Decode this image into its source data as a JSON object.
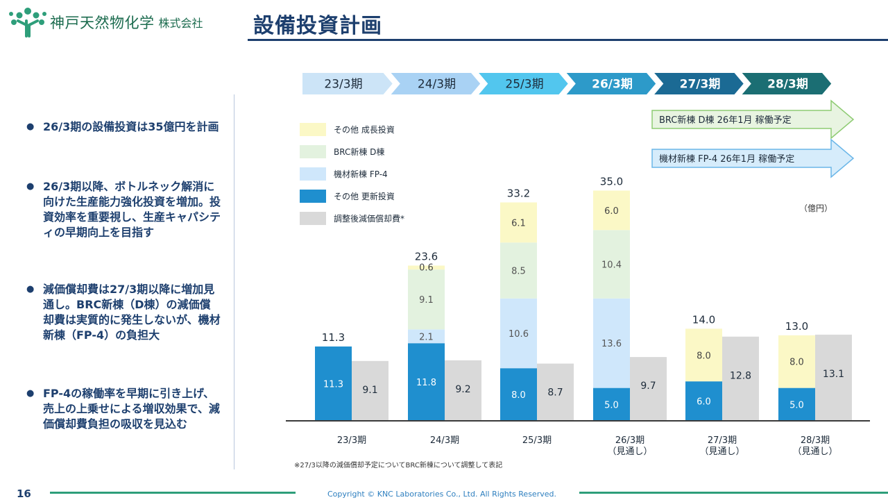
{
  "header": {
    "company_name": "神戸天然物化学",
    "company_suffix": "株式会社",
    "page_title": "設備投資計画"
  },
  "bullets": [
    "26/3期の設備投資は35億円を計画",
    "26/3期以降、ボトルネック解消に向けた生産能力強化投資を増加。投資効率を重要視し、生産キャパシティの早期向上を目指す",
    "減価償却費は27/3期以降に増加見通し。BRC新棟（D棟）の減価償却費は実質的に発生しないが、機材新棟（FP-4）の負担大",
    "FP-4の稼働率を早期に引き上げ、売上の上乗せによる増収効果で、減価償却費負担の吸収を見込む"
  ],
  "timeline": {
    "periods": [
      "23/3期",
      "24/3期",
      "25/3期",
      "26/3期",
      "27/3期",
      "28/3期"
    ],
    "colors": [
      "#cce4f7",
      "#a9d2f4",
      "#52c6ee",
      "#2d9ac9",
      "#1b6a94",
      "#1b6e73"
    ]
  },
  "callouts": [
    {
      "text": "BRC新棟 D棟 26年1月 稼働予定",
      "fill": "#e8f4e1",
      "stroke": "#8ecb72"
    },
    {
      "text": "機材新棟 FP-4 26年1月 稼働予定",
      "fill": "#d6ecfb",
      "stroke": "#6ab6e8"
    }
  ],
  "chart_data": {
    "type": "bar",
    "unit": "（億円）",
    "categories": [
      "23/3期",
      "24/3期",
      "25/3期",
      "26/3期\n（見通し）",
      "27/3期\n（見通し）",
      "28/3期\n（見通し）"
    ],
    "capex_series": [
      {
        "name": "その他 更新投資",
        "color": "#1f8fcf",
        "label_color": "#ffffff",
        "values": [
          11.3,
          11.8,
          8.0,
          5.0,
          6.0,
          5.0
        ]
      },
      {
        "name": "機材新棟 FP-4",
        "color": "#cfe7fb",
        "label_color": "#555555",
        "values": [
          0,
          2.1,
          10.6,
          13.6,
          0,
          0
        ]
      },
      {
        "name": "BRC新棟 D棟",
        "color": "#e3f2df",
        "label_color": "#555555",
        "values": [
          0,
          9.1,
          8.5,
          10.4,
          0,
          0
        ]
      },
      {
        "name": "その他 成長投資",
        "color": "#fbf8c6",
        "label_color": "#444444",
        "values": [
          0,
          0.6,
          6.1,
          6.0,
          8.0,
          8.0
        ]
      }
    ],
    "capex_totals": [
      11.3,
      23.6,
      33.2,
      35.0,
      14.0,
      13.0
    ],
    "depreciation": {
      "name": "調整後減価償却費*",
      "color": "#d9d9d9",
      "values": [
        9.1,
        9.2,
        8.7,
        9.7,
        12.8,
        13.1
      ]
    },
    "legend_order": [
      "その他 成長投資",
      "BRC新棟 D棟",
      "機材新棟 FP-4",
      "その他 更新投資",
      "調整後減価償却費*"
    ],
    "legend_position": "top-left",
    "ylim": [
      0,
      38
    ],
    "footnote": "※27/3以降の減価償却予定についてBRC新棟について調整して表記"
  },
  "footer": {
    "page_number": "16",
    "copyright": "Copyright © KNC Laboratories Co., Ltd. All Rights Reserved."
  }
}
